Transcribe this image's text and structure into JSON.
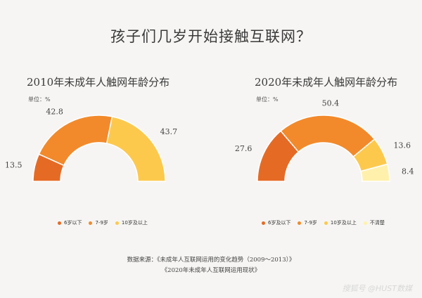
{
  "title": "孩子们几岁开始接触互联网？",
  "chart_data": [
    {
      "type": "pie",
      "title": "2010年未成年人触网年龄分布",
      "unit": "单位：%",
      "categories": [
        "6岁以下",
        "7-9岁",
        "10岁及以上"
      ],
      "values": [
        13.5,
        42.8,
        43.7
      ],
      "colors": [
        "#e56b25",
        "#f28a2b",
        "#fdc94d"
      ]
    },
    {
      "type": "pie",
      "title": "2020年未成年人触网年龄分布",
      "unit": "单位：%",
      "categories": [
        "6岁及以下",
        "7-9岁",
        "10岁及以上",
        "不清楚"
      ],
      "values": [
        27.6,
        50.4,
        13.6,
        8.4
      ],
      "colors": [
        "#e56b25",
        "#f28a2b",
        "#fdc94d",
        "#fff1ac"
      ]
    }
  ],
  "source": {
    "line1": "数据来源：《未成年人互联网运用的变化趋势（2009～2013）》",
    "line2": "《2020年未成年人互联网运用现状》"
  },
  "watermark": "搜狐号 @HUST数媒"
}
